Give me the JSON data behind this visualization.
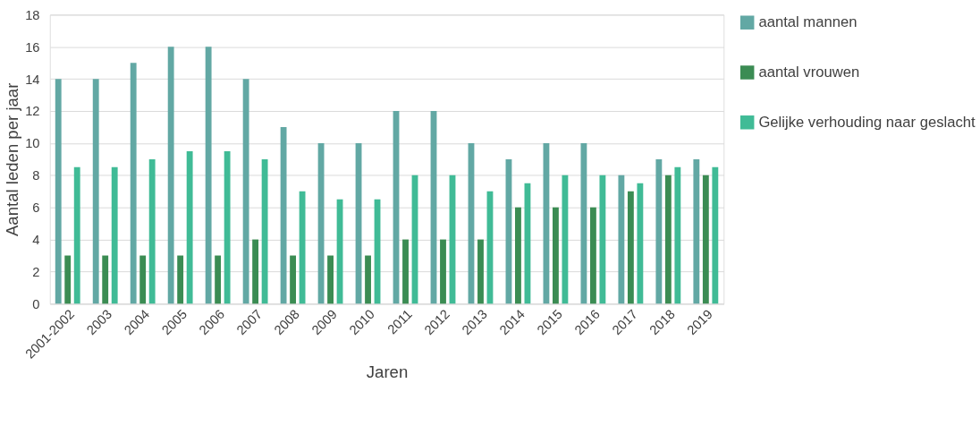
{
  "chart_data": {
    "type": "bar",
    "xlabel": "Jaren",
    "ylabel": "Aantal leden per jaar",
    "categories": [
      "2001-2002",
      "2003",
      "2004",
      "2005",
      "2006",
      "2007",
      "2008",
      "2009",
      "2010",
      "2011",
      "2012",
      "2013",
      "2014",
      "2015",
      "2016",
      "2017",
      "2018",
      "2019"
    ],
    "series": [
      {
        "name": "aantal mannen",
        "color": "#62a8a4",
        "values": [
          14,
          14,
          15,
          16,
          16,
          14,
          11,
          10,
          10,
          12,
          12,
          10,
          9,
          10,
          10,
          8,
          9,
          9
        ]
      },
      {
        "name": "aantal vrouwen",
        "color": "#3b8c53",
        "values": [
          3,
          3,
          3,
          3,
          3,
          4,
          3,
          3,
          3,
          4,
          4,
          4,
          6,
          6,
          6,
          7,
          8,
          8
        ]
      },
      {
        "name": "Gelijke verhouding naar geslacht",
        "color": "#40bb96",
        "values": [
          8.5,
          8.5,
          9,
          9.5,
          9.5,
          9,
          7,
          6.5,
          6.5,
          8,
          8,
          7,
          7.5,
          8,
          8,
          7.5,
          8.5,
          8.5
        ]
      }
    ],
    "ylim": [
      0,
      18
    ],
    "yticks": [
      0,
      2,
      4,
      6,
      8,
      10,
      12,
      14,
      16,
      18
    ],
    "grid": "y",
    "legend": "right"
  }
}
